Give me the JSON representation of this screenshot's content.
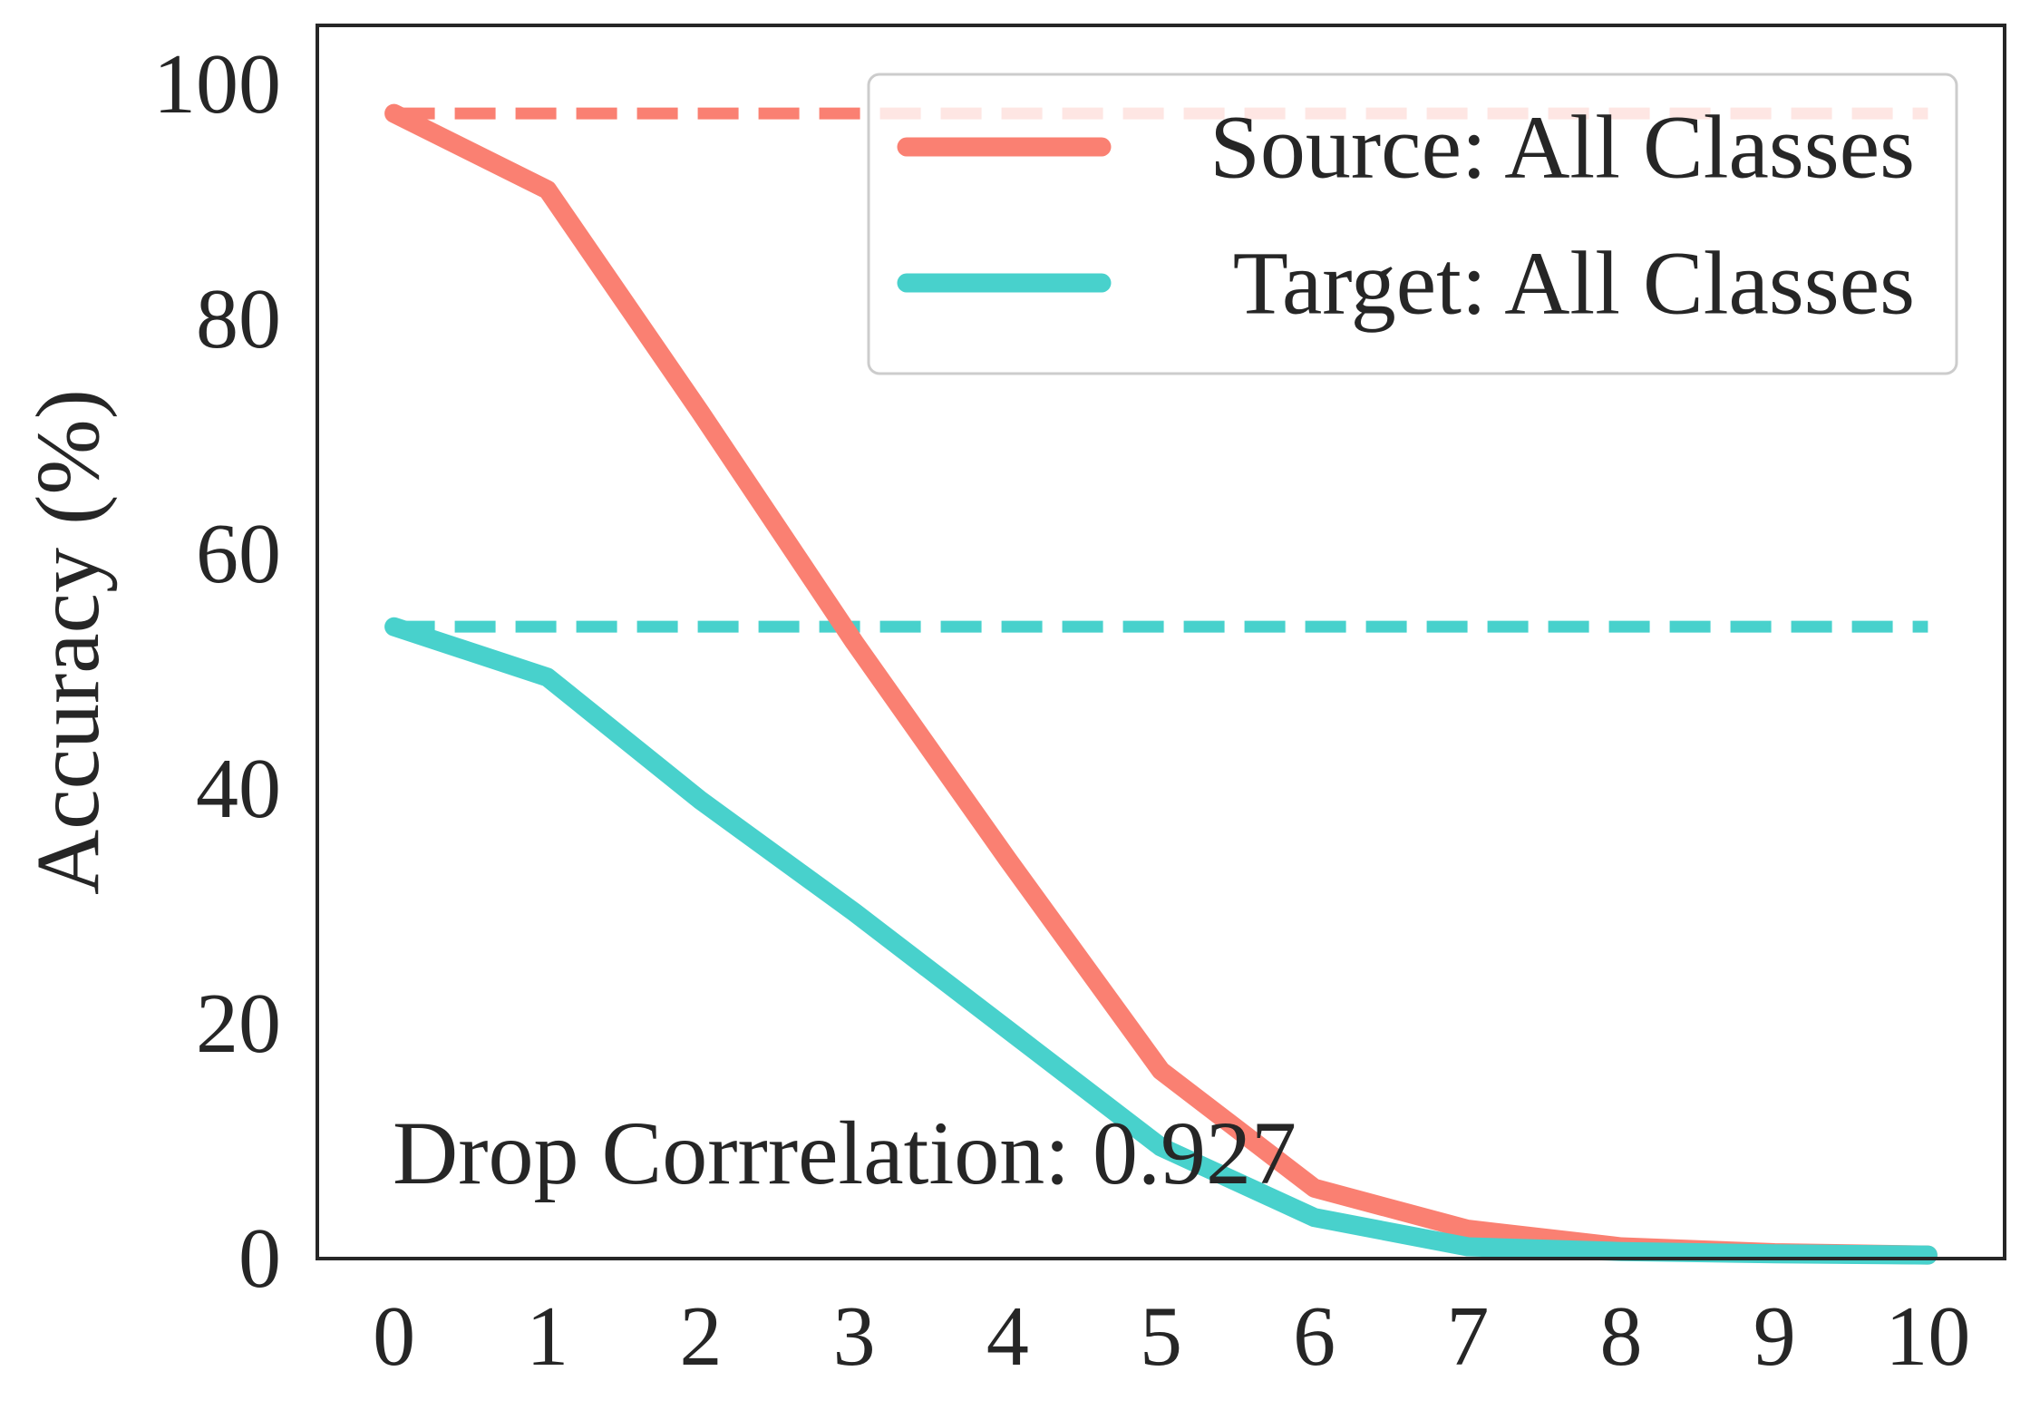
{
  "chart_data": {
    "type": "line",
    "title": "",
    "xlabel": "",
    "ylabel": "Accuracy (%)",
    "x": [
      0,
      1,
      2,
      3,
      4,
      5,
      6,
      7,
      8,
      9,
      10
    ],
    "xlim": [
      -0.5,
      10.5
    ],
    "ylim": [
      0,
      105
    ],
    "xticks": [
      "0",
      "1",
      "2",
      "3",
      "4",
      "5",
      "6",
      "7",
      "8",
      "9",
      "10"
    ],
    "yticks": [
      "0",
      "20",
      "40",
      "60",
      "80",
      "100"
    ],
    "grid": false,
    "legend_position": "top-right",
    "series": [
      {
        "name": "Source: All Classes",
        "color": "#FA8072",
        "values": [
          97.5,
          91,
          72,
          52.5,
          34,
          16,
          6,
          2.5,
          1,
          0.5,
          0.3
        ],
        "baseline": 97.5
      },
      {
        "name": "Target:  All Classes",
        "color": "#48D1CC",
        "values": [
          53.8,
          49.5,
          39,
          29.5,
          19.5,
          9.5,
          3.5,
          1,
          0.6,
          0.4,
          0.3
        ],
        "baseline": 53.8
      }
    ],
    "annotation": "Drop Corrrelation: 0.927"
  }
}
